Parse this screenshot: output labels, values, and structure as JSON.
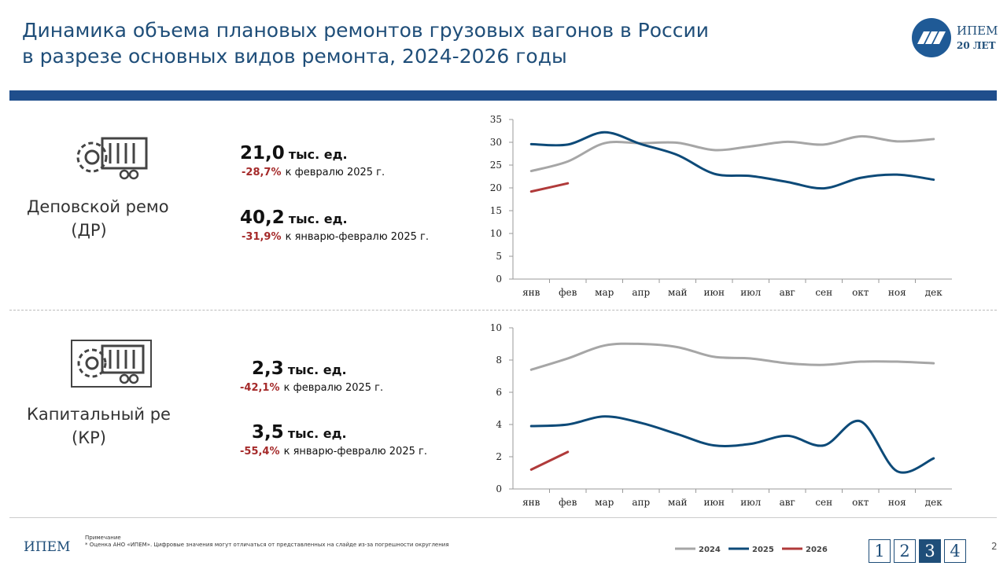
{
  "header": {
    "title_lines": [
      "Динамика объема плановых ремонтов грузовых вагонов в России",
      "в разрезе основных видов ремонта, 2024-2026 годы"
    ],
    "logo_name": "ИПЕМ",
    "logo_sub": "20 ЛЕТ"
  },
  "sections": [
    {
      "label": "Деповской ремонт",
      "abbr": "(ДР)",
      "stats": [
        {
          "value": "21,0",
          "unit": "тыс. ед.",
          "change": "-28,7%",
          "context": "к февралю 2025 г."
        },
        {
          "value": "40,2",
          "unit": "тыс. ед.",
          "change": "-31,9%",
          "context": "к январю-февралю 2025 г."
        }
      ]
    },
    {
      "label": "Капитальный ремонт",
      "abbr": "(КР)",
      "stats": [
        {
          "value": "2,3",
          "unit": "тыс. ед.",
          "change": "-42,1%",
          "context": "к февралю 2025 г."
        },
        {
          "value": "3,5",
          "unit": "тыс. ед.",
          "change": "-55,4%",
          "context": "к январю-февралю 2025 г."
        }
      ]
    }
  ],
  "chart_data": [
    {
      "type": "line",
      "categories": [
        "янв",
        "фев",
        "мар",
        "апр",
        "май",
        "июн",
        "июл",
        "авг",
        "сен",
        "окт",
        "ноя",
        "дек"
      ],
      "series": [
        {
          "name": "2024",
          "color": "#a6a6a6",
          "values": [
            23.7,
            25.8,
            29.8,
            29.8,
            29.9,
            28.3,
            29.1,
            30.1,
            29.5,
            31.3,
            30.2,
            30.7
          ]
        },
        {
          "name": "2025",
          "color": "#0d4a78",
          "values": [
            29.6,
            29.5,
            32.2,
            29.6,
            27.2,
            23.1,
            22.6,
            21.3,
            19.9,
            22.2,
            22.9,
            21.8
          ]
        },
        {
          "name": "2026",
          "color": "#b03a3a",
          "values": [
            19.2,
            21.0,
            null,
            null,
            null,
            null,
            null,
            null,
            null,
            null,
            null,
            null
          ]
        }
      ],
      "ylim": [
        0,
        35
      ],
      "yticks": [
        0,
        5,
        10,
        15,
        20,
        25,
        30,
        35
      ],
      "smooth": true
    },
    {
      "type": "line",
      "categories": [
        "янв",
        "фев",
        "мар",
        "апр",
        "май",
        "июн",
        "июл",
        "авг",
        "сен",
        "окт",
        "ноя",
        "дек"
      ],
      "series": [
        {
          "name": "2024",
          "color": "#a6a6a6",
          "values": [
            7.4,
            8.1,
            8.9,
            9.0,
            8.8,
            8.2,
            8.1,
            7.8,
            7.7,
            7.9,
            7.9,
            7.8
          ]
        },
        {
          "name": "2025",
          "color": "#0d4a78",
          "values": [
            3.9,
            4.0,
            4.5,
            4.1,
            3.4,
            2.7,
            2.8,
            3.3,
            2.7,
            4.2,
            1.1,
            1.9
          ]
        },
        {
          "name": "2026",
          "color": "#b03a3a",
          "values": [
            1.2,
            2.3,
            null,
            null,
            null,
            null,
            null,
            null,
            null,
            null,
            null,
            null
          ]
        }
      ],
      "ylim": [
        0,
        10
      ],
      "yticks": [
        0,
        2,
        4,
        6,
        8,
        10
      ],
      "smooth": true
    }
  ],
  "footer": {
    "note_title": "Примечание",
    "note": "* Оценка АНО «ИПЕМ». Цифровые значения могут отличаться от представленных на слайде из-за погрешности округления",
    "logo": "ИПЕМ",
    "pages": [
      "1",
      "2",
      "3",
      "4"
    ],
    "current_page": "3",
    "slide_number": "2"
  }
}
